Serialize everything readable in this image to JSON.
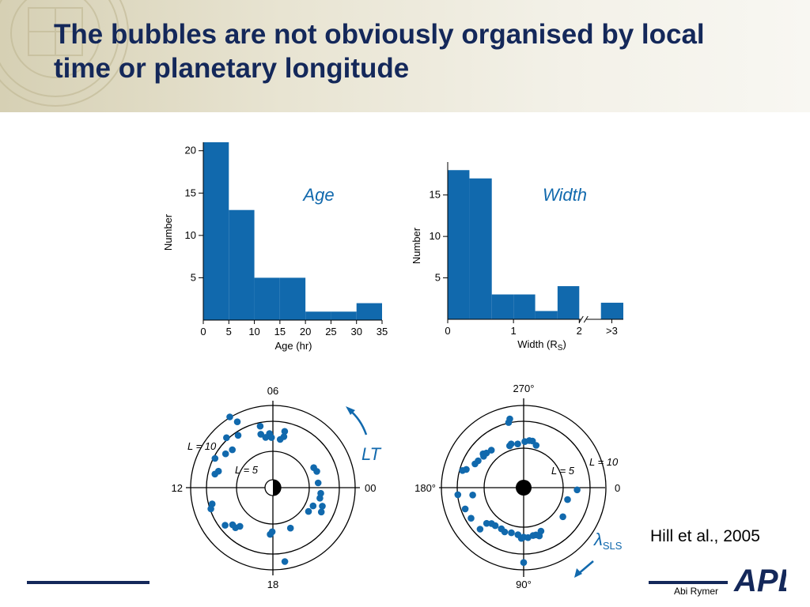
{
  "slide": {
    "title": "The bubbles are not obviously organised by local time or planetary longitude",
    "citation": "Hill et al., 2005",
    "author": "Abi Rymer",
    "logo": "APL"
  },
  "colors": {
    "title": "#14285a",
    "data": "#1169ad",
    "rule": "#14285a"
  },
  "chart_data": [
    {
      "type": "bar",
      "title": "Age",
      "xlabel": "Age (hr)",
      "ylabel": "Number",
      "x_ticks": [
        "0",
        "5",
        "10",
        "15",
        "20",
        "25",
        "30",
        "35"
      ],
      "y_ticks": [
        "5",
        "10",
        "15",
        "20"
      ],
      "bin_edges": [
        0,
        5,
        10,
        15,
        20,
        25,
        30,
        35
      ],
      "values": [
        21,
        13,
        5,
        5,
        1,
        1,
        2
      ],
      "xlim": [
        0,
        35
      ],
      "ylim": [
        0,
        21
      ]
    },
    {
      "type": "bar",
      "title": "Width",
      "xlabel": "Width (R",
      "xlabel_sub": "S",
      "xlabel_close": ")",
      "ylabel": "Number",
      "x_ticks": [
        "0",
        "1",
        "2",
        ">3"
      ],
      "y_ticks": [
        "5",
        "10",
        "15"
      ],
      "bin_edges": [
        0,
        0.33,
        0.67,
        1.0,
        1.33,
        1.67,
        2.0,
        2.33,
        2.67
      ],
      "values": [
        18,
        17,
        3,
        3,
        1,
        4,
        0,
        2
      ],
      "xlim": [
        0,
        2.67
      ],
      "ylim": [
        0,
        18.5
      ],
      "axis_break_at": 2.0
    },
    {
      "type": "scatter",
      "title": "LT",
      "coordinates": "polar (local time vs L-shell)",
      "ring_labels": [
        "L = 10",
        "L = 5"
      ],
      "rings_L": [
        10,
        5
      ],
      "rmax_L": 12.3,
      "axis_labels": {
        "top": "06",
        "left": "12",
        "right": "00",
        "bottom": "18"
      },
      "points": [
        {
          "lt": 8.09,
          "L": 12.4
        },
        {
          "lt": 7.89,
          "L": 11.2
        },
        {
          "lt": 6.55,
          "L": 7.6
        },
        {
          "lt": 6.78,
          "L": 9.4
        },
        {
          "lt": 6.85,
          "L": 8.2
        },
        {
          "lt": 5.21,
          "L": 8.6
        },
        {
          "lt": 5.43,
          "L": 7.3
        },
        {
          "lt": 5.19,
          "L": 7.8
        },
        {
          "lt": 6.24,
          "L": 8.1
        },
        {
          "lt": 8.24,
          "L": 9.4
        },
        {
          "lt": 8.86,
          "L": 10.2
        },
        {
          "lt": 9.13,
          "L": 8.3
        },
        {
          "lt": 9.63,
          "L": 8.7
        },
        {
          "lt": 10.21,
          "L": 9.7
        },
        {
          "lt": 11.12,
          "L": 8.9
        },
        {
          "lt": 10.88,
          "L": 8.5
        },
        {
          "lt": 1.74,
          "L": 6.8
        },
        {
          "lt": 1.36,
          "L": 7.0
        },
        {
          "lt": 0.4,
          "L": 6.8
        },
        {
          "lt": 23.55,
          "L": 7.2
        },
        {
          "lt": 23.16,
          "L": 7.2
        },
        {
          "lt": 22.37,
          "L": 6.6
        },
        {
          "lt": 21.75,
          "L": 6.4
        },
        {
          "lt": 22.63,
          "L": 7.9
        },
        {
          "lt": 22.22,
          "L": 8.1
        },
        {
          "lt": 13.0,
          "L": 9.4
        },
        {
          "lt": 13.26,
          "L": 9.8
        },
        {
          "lt": 14.84,
          "L": 8.2
        },
        {
          "lt": 14.55,
          "L": 9.1
        },
        {
          "lt": 15.3,
          "L": 7.6
        },
        {
          "lt": 15.13,
          "L": 8.2
        },
        {
          "lt": 17.78,
          "L": 7.0
        },
        {
          "lt": 17.94,
          "L": 6.6
        },
        {
          "lt": 19.56,
          "L": 6.6
        },
        {
          "lt": 18.61,
          "L": 11.2
        },
        {
          "lt": 6.11,
          "L": 7.5
        }
      ]
    },
    {
      "type": "scatter",
      "title": "λ",
      "title_sub": "SLS",
      "coordinates": "polar (SLS longitude vs L-shell)",
      "ring_labels": [
        "L = 10",
        "L = 5"
      ],
      "rings_L": [
        10,
        5
      ],
      "rmax_L": 12.3,
      "axis_labels": {
        "top": "270°",
        "left": "180°",
        "right": "0",
        "bottom": "90°"
      },
      "points": [
        {
          "lon": 258.6,
          "L": 10.5
        },
        {
          "lon": 257.0,
          "L": 10.0
        },
        {
          "lon": 251.5,
          "L": 6.6
        },
        {
          "lon": 254.1,
          "L": 6.8
        },
        {
          "lon": 262.3,
          "L": 6.6
        },
        {
          "lon": 271.5,
          "L": 6.9
        },
        {
          "lon": 276.9,
          "L": 7.1
        },
        {
          "lon": 280.8,
          "L": 7.1
        },
        {
          "lon": 286.4,
          "L": 6.6
        },
        {
          "lon": 229.3,
          "L": 7.4
        },
        {
          "lon": 223.0,
          "L": 7.6
        },
        {
          "lon": 219.8,
          "L": 7.9
        },
        {
          "lon": 218.1,
          "L": 7.6
        },
        {
          "lon": 210.6,
          "L": 7.9
        },
        {
          "lon": 206.1,
          "L": 8.1
        },
        {
          "lon": 197.7,
          "L": 9.0
        },
        {
          "lon": 195.7,
          "L": 9.5
        },
        {
          "lon": 173.9,
          "L": 9.9
        },
        {
          "lon": 160.0,
          "L": 9.3
        },
        {
          "lon": 149.8,
          "L": 9.1
        },
        {
          "lon": 171.8,
          "L": 7.7
        },
        {
          "lon": 136.0,
          "L": 7.7
        },
        {
          "lon": 131.8,
          "L": 7.2
        },
        {
          "lon": 126.7,
          "L": 7.1
        },
        {
          "lon": 118.4,
          "L": 7.0
        },
        {
          "lon": 113.2,
          "L": 7.2
        },
        {
          "lon": 105.2,
          "L": 7.0
        },
        {
          "lon": 96.9,
          "L": 7.1
        },
        {
          "lon": 92.6,
          "L": 7.6
        },
        {
          "lon": 90.0,
          "L": 7.4
        },
        {
          "lon": 85.0,
          "L": 7.5
        },
        {
          "lon": 78.9,
          "L": 7.3
        },
        {
          "lon": 75.5,
          "L": 7.3
        },
        {
          "lon": 72.1,
          "L": 7.6
        },
        {
          "lon": 68.3,
          "L": 7.0
        },
        {
          "lon": 36.6,
          "L": 7.3
        },
        {
          "lon": 15.2,
          "L": 6.8
        },
        {
          "lon": 2.4,
          "L": 8.0
        },
        {
          "lon": 136.4,
          "L": 9.0
        },
        {
          "lon": 90.0,
          "L": 11.2
        }
      ]
    }
  ]
}
